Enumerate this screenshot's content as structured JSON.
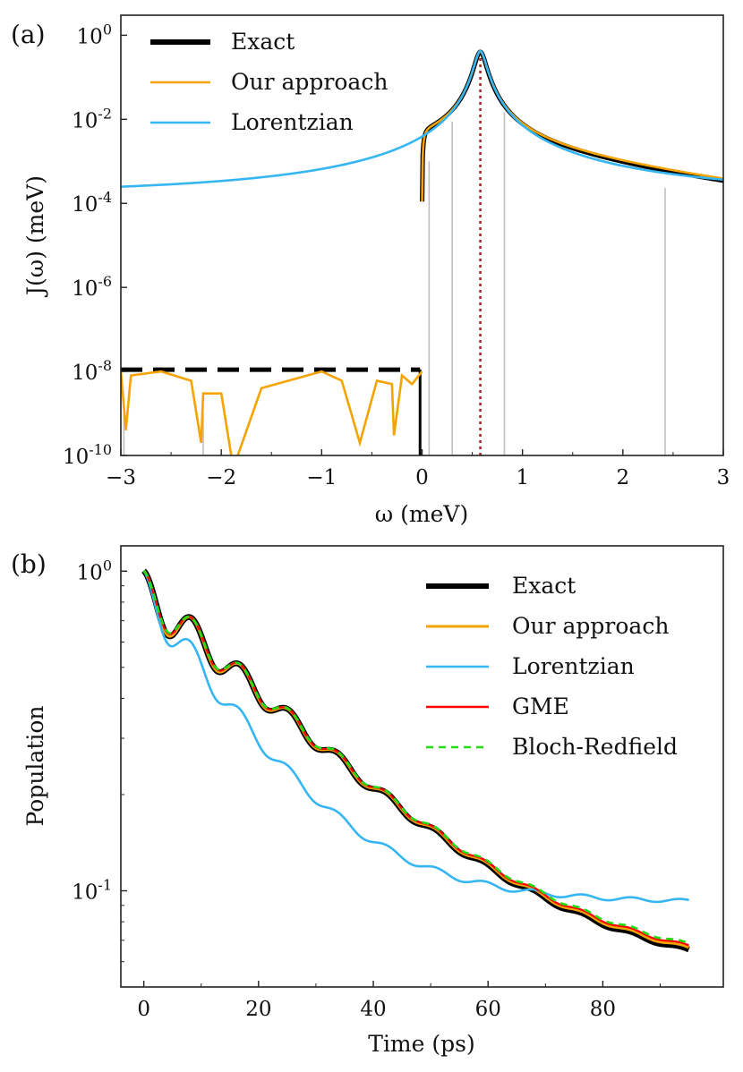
{
  "chart_data": [
    {
      "panel": "(a)",
      "type": "line",
      "xlabel": "ω (meV)",
      "ylabel": "J(ω) (meV)",
      "xlim": [
        -3,
        3
      ],
      "ylim": [
        1e-10,
        3
      ],
      "yscale": "log",
      "x_ticks": [
        -3,
        -2,
        -1,
        0,
        1,
        2,
        3
      ],
      "x_tick_labels": [
        "−3",
        "−2",
        "−1",
        "0",
        "1",
        "2",
        "3"
      ],
      "y_ticks": [
        1e-10,
        1e-08,
        1e-06,
        0.0001,
        0.01,
        1
      ],
      "y_tick_labels": [
        {
          "base": "10",
          "exp": "-10"
        },
        {
          "base": "10",
          "exp": "-8"
        },
        {
          "base": "10",
          "exp": "-6"
        },
        {
          "base": "10",
          "exp": "-4"
        },
        {
          "base": "10",
          "exp": "-2"
        },
        {
          "base": "10",
          "exp": "0"
        }
      ],
      "grid": false,
      "legend_position": "top-left",
      "legend": [
        "Exact",
        "Our approach",
        "Lorentzian"
      ],
      "series": [
        {
          "name": "Exact",
          "color": "#000000",
          "peak_x": 0.58,
          "peak_y": 0.4,
          "points": [
            [
              0.0,
              1e-08
            ],
            [
              0.01,
              1e-05
            ],
            [
              0.03,
              0.0002
            ],
            [
              0.08,
              0.0015
            ],
            [
              0.15,
              0.003
            ],
            [
              0.25,
              0.006
            ],
            [
              0.35,
              0.013
            ],
            [
              0.45,
              0.04
            ],
            [
              0.52,
              0.15
            ],
            [
              0.58,
              0.4
            ],
            [
              0.64,
              0.15
            ],
            [
              0.72,
              0.04
            ],
            [
              0.85,
              0.011
            ],
            [
              1.0,
              0.005
            ],
            [
              1.5,
              0.0015
            ],
            [
              2.0,
              0.0005
            ],
            [
              2.5,
              0.0002
            ],
            [
              3.0,
              8.5e-05
            ]
          ],
          "negative_side_level": 1.1e-08
        },
        {
          "name": "Our approach",
          "color": "#f5a300",
          "peak_x": 0.58,
          "peak_y": 0.4,
          "points": [
            [
              -3.0,
              1e-08
            ],
            [
              -2.95,
              4e-10
            ],
            [
              -2.9,
              8e-09
            ],
            [
              -2.6,
              1e-08
            ],
            [
              -2.3,
              6e-09
            ],
            [
              -2.2,
              2e-10
            ],
            [
              -2.18,
              3e-09
            ],
            [
              -2.0,
              3e-09
            ],
            [
              -1.88,
              5e-11
            ],
            [
              -1.6,
              4e-09
            ],
            [
              -1.0,
              1e-08
            ],
            [
              -0.8,
              6e-09
            ],
            [
              -0.62,
              2e-10
            ],
            [
              -0.45,
              6e-09
            ],
            [
              -0.3,
              5e-09
            ],
            [
              -0.28,
              3e-10
            ],
            [
              -0.2,
              8e-09
            ],
            [
              -0.1,
              5e-09
            ],
            [
              0.0,
              1e-08
            ],
            [
              0.05,
              0.0012
            ],
            [
              0.15,
              0.003
            ],
            [
              0.35,
              0.013
            ],
            [
              0.58,
              0.4
            ],
            [
              0.85,
              0.011
            ],
            [
              1.5,
              0.0016
            ],
            [
              2.0,
              0.00055
            ],
            [
              3.0,
              9.5e-05
            ]
          ]
        },
        {
          "name": "Lorentzian",
          "color": "#35b6f2",
          "peak_x": 0.58,
          "peak_y": 0.42,
          "points": [
            [
              -3.0,
              8e-05
            ],
            [
              -2.0,
              0.0002
            ],
            [
              -1.0,
              0.0006
            ],
            [
              -0.5,
              0.0013
            ],
            [
              0.0,
              0.0035
            ],
            [
              0.3,
              0.012
            ],
            [
              0.58,
              0.42
            ],
            [
              0.85,
              0.014
            ],
            [
              1.5,
              0.0025
            ],
            [
              2.0,
              0.0009
            ],
            [
              3.0,
              0.00017
            ]
          ]
        }
      ],
      "markers": {
        "vertical_gray_x": [
          -2.97,
          -2.18,
          0.07,
          0.3,
          0.82,
          2.42
        ],
        "dotted_red_x": 0.58,
        "dotted_red_color": "#a52a2a",
        "gray_color": "#c0c0c0"
      }
    },
    {
      "panel": "(b)",
      "type": "line",
      "xlabel": "Time (ps)",
      "ylabel": "Population",
      "xlim": [
        -4,
        101
      ],
      "ylim": [
        0.05,
        1.2
      ],
      "yscale": "log",
      "x_ticks": [
        0,
        20,
        40,
        60,
        80
      ],
      "x_tick_labels": [
        "0",
        "20",
        "40",
        "60",
        "80"
      ],
      "y_ticks": [
        0.1,
        1
      ],
      "y_tick_labels": [
        {
          "base": "10",
          "exp": "-1"
        },
        {
          "base": "10",
          "exp": "0"
        }
      ],
      "grid": false,
      "legend_position": "top-right",
      "legend": [
        "Exact",
        "Our approach",
        "Lorentzian",
        "GME",
        "Bloch-Redfield"
      ],
      "series": [
        {
          "name": "Exact",
          "color": "#000000",
          "model": {
            "start": 1.0,
            "floor": 0.05,
            "decay_time": 23,
            "osc_period": 8.5,
            "osc_amp": 0.45,
            "osc_decay": 28
          }
        },
        {
          "name": "Our approach",
          "color": "#f5a300",
          "model": {
            "start": 1.0,
            "floor": 0.051,
            "decay_time": 23,
            "osc_period": 8.5,
            "osc_amp": 0.45,
            "osc_decay": 28
          }
        },
        {
          "name": "Lorentzian",
          "color": "#35b6f2",
          "model": {
            "start": 1.0,
            "floor": 0.092,
            "decay_time": 14,
            "osc_period": 8.5,
            "osc_amp": 0.45,
            "osc_decay": 20
          }
        },
        {
          "name": "GME",
          "color": "#ff0000",
          "model": {
            "start": 1.0,
            "floor": 0.052,
            "decay_time": 23,
            "osc_period": 8.5,
            "osc_amp": 0.43,
            "osc_decay": 28
          }
        },
        {
          "name": "Bloch-Redfield",
          "color": "#22dd11",
          "model": {
            "start": 1.0,
            "floor": 0.053,
            "decay_time": 23,
            "osc_period": 8.5,
            "osc_amp": 0.42,
            "osc_decay": 28
          }
        }
      ],
      "t_end": 95
    }
  ]
}
